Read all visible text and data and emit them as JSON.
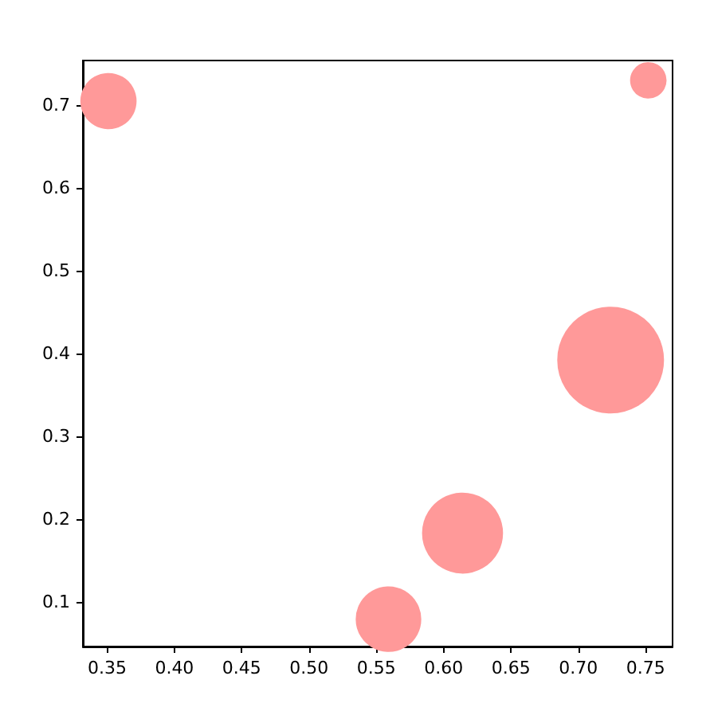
{
  "chart_data": {
    "type": "bubble",
    "x": [
      0.351,
      0.752,
      0.724,
      0.614,
      0.559
    ],
    "series": [
      {
        "color": "#ff9999",
        "values": [
          0.705,
          0.73,
          0.392,
          0.183,
          0.079
        ],
        "sizes": [
          0.27,
          0.11,
          1,
          0.57,
          0.37
        ]
      }
    ],
    "xlim": [
      0.332,
      0.77
    ],
    "ylim": [
      0.046,
      0.754
    ],
    "xticks": [
      0.35,
      {
        "value": 0.4,
        "label": "0.40"
      },
      0.45,
      {
        "value": 0.5,
        "label": "0.50"
      },
      0.55,
      {
        "value": 0.6,
        "label": "0.60"
      },
      0.65,
      {
        "value": 0.7,
        "label": "0.70"
      },
      0.75
    ],
    "yticks": [
      0.1,
      0.2,
      0.3,
      0.4,
      0.5,
      0.6,
      0.7
    ],
    "grid": false
  }
}
